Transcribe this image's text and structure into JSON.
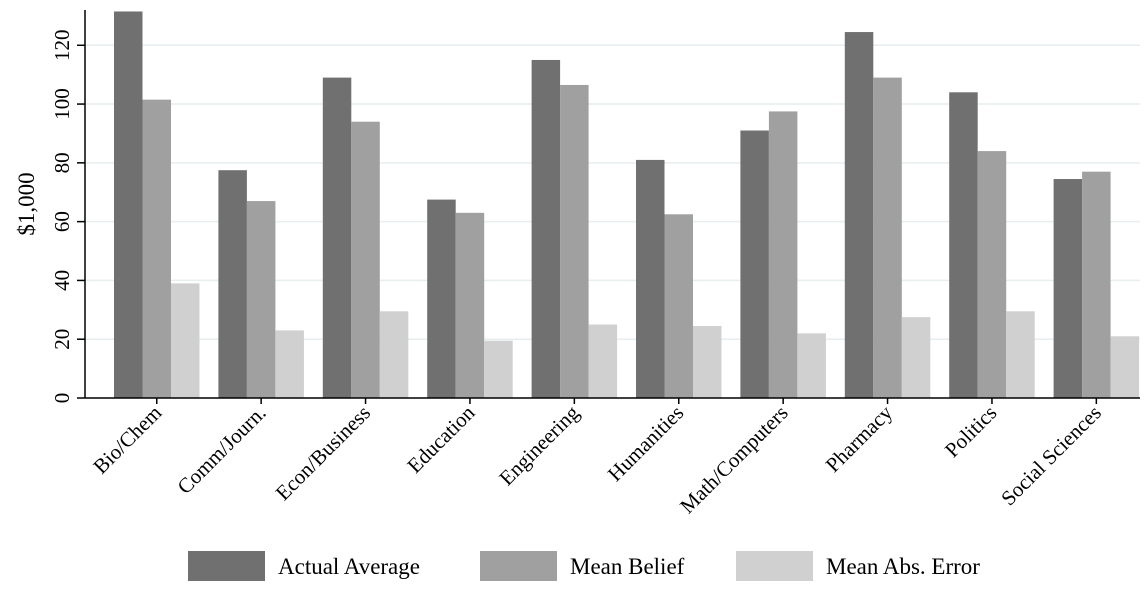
{
  "chart_data": {
    "type": "bar",
    "title": "",
    "xlabel": "",
    "ylabel": "$1,000",
    "ylim": [
      0,
      132
    ],
    "yticks": [
      0,
      20,
      40,
      60,
      80,
      100,
      120
    ],
    "grid": true,
    "legend_position": "bottom",
    "categories": [
      "Bio/Chem",
      "Comm/Journ.",
      "Econ/Business",
      "Education",
      "Engineering",
      "Humanities",
      "Math/Computers",
      "Pharmacy",
      "Politics",
      "Social Sciences"
    ],
    "series": [
      {
        "name": "Actual Average",
        "color": "#707070",
        "values": [
          131.5,
          77.5,
          109,
          67.5,
          115,
          81,
          91,
          124.5,
          104,
          74.5
        ]
      },
      {
        "name": "Mean Belief",
        "color": "#a0a0a0",
        "values": [
          101.5,
          67,
          94,
          63,
          106.5,
          62.5,
          97.5,
          109,
          84,
          77
        ]
      },
      {
        "name": "Mean Abs. Error",
        "color": "#d0d0d0",
        "values": [
          39,
          23,
          29.5,
          19.5,
          25,
          24.5,
          22,
          27.5,
          29.5,
          21
        ]
      }
    ],
    "grid_color": "#e6eef0",
    "axis_color": "#000000"
  }
}
